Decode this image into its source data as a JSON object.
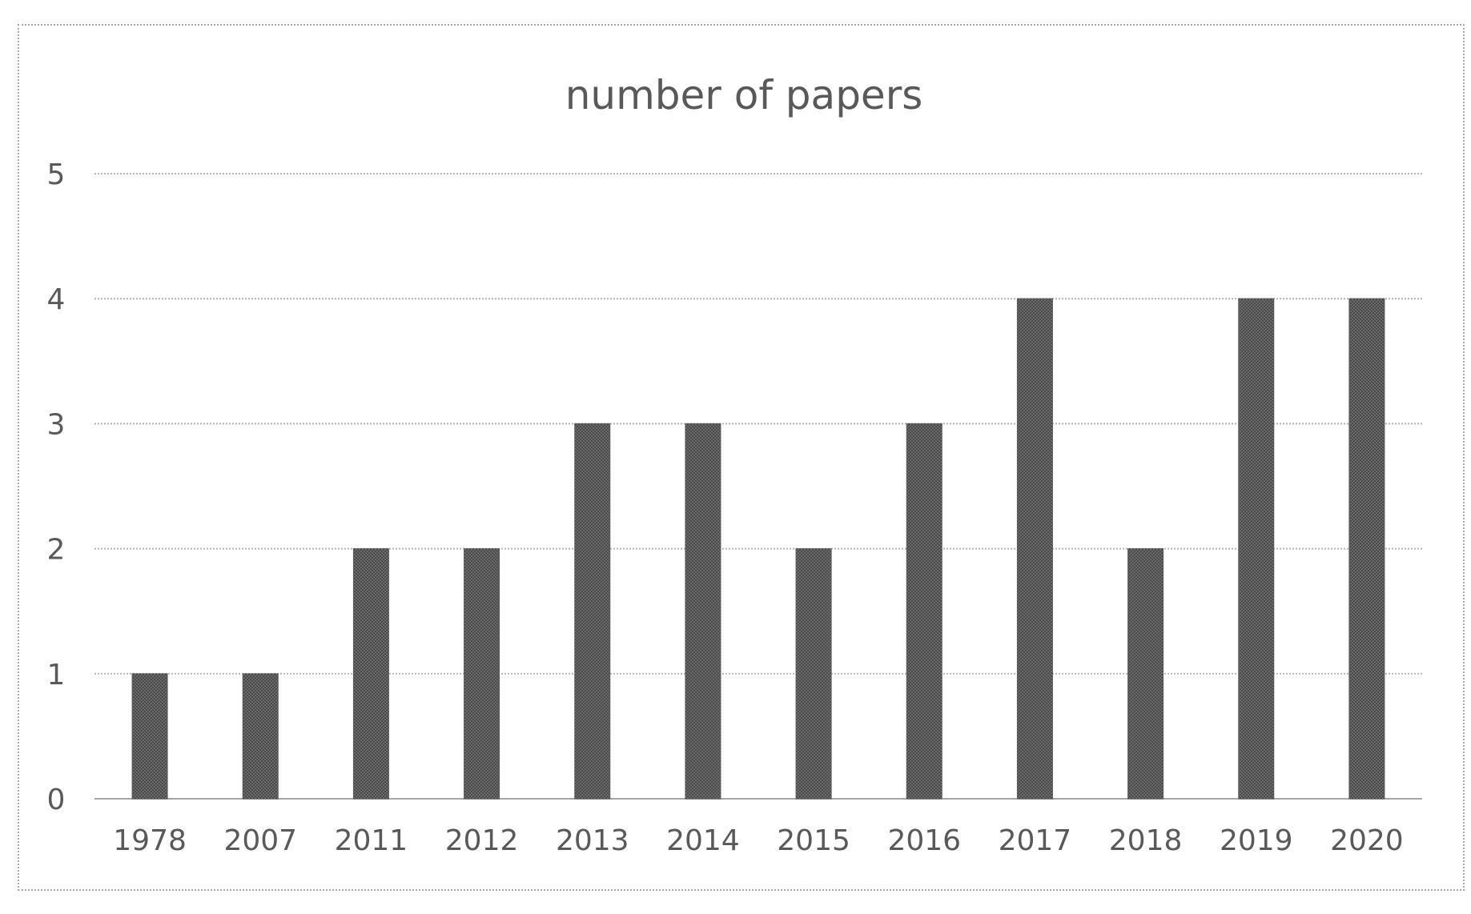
{
  "chart_data": {
    "type": "bar",
    "title": "number of papers",
    "xlabel": "",
    "ylabel": "",
    "categories": [
      "1978",
      "2007",
      "2011",
      "2012",
      "2013",
      "2014",
      "2015",
      "2016",
      "2017",
      "2018",
      "2019",
      "2020"
    ],
    "values": [
      1,
      1,
      2,
      2,
      3,
      3,
      2,
      3,
      4,
      2,
      4,
      4
    ],
    "ylim": [
      0,
      5
    ],
    "yticks": [
      "0",
      "1",
      "2",
      "3",
      "4",
      "5"
    ],
    "grid": true,
    "legend": "none",
    "colors": {
      "bar": "#595959",
      "grid": "#b3b3b3",
      "text": "#595959"
    }
  }
}
